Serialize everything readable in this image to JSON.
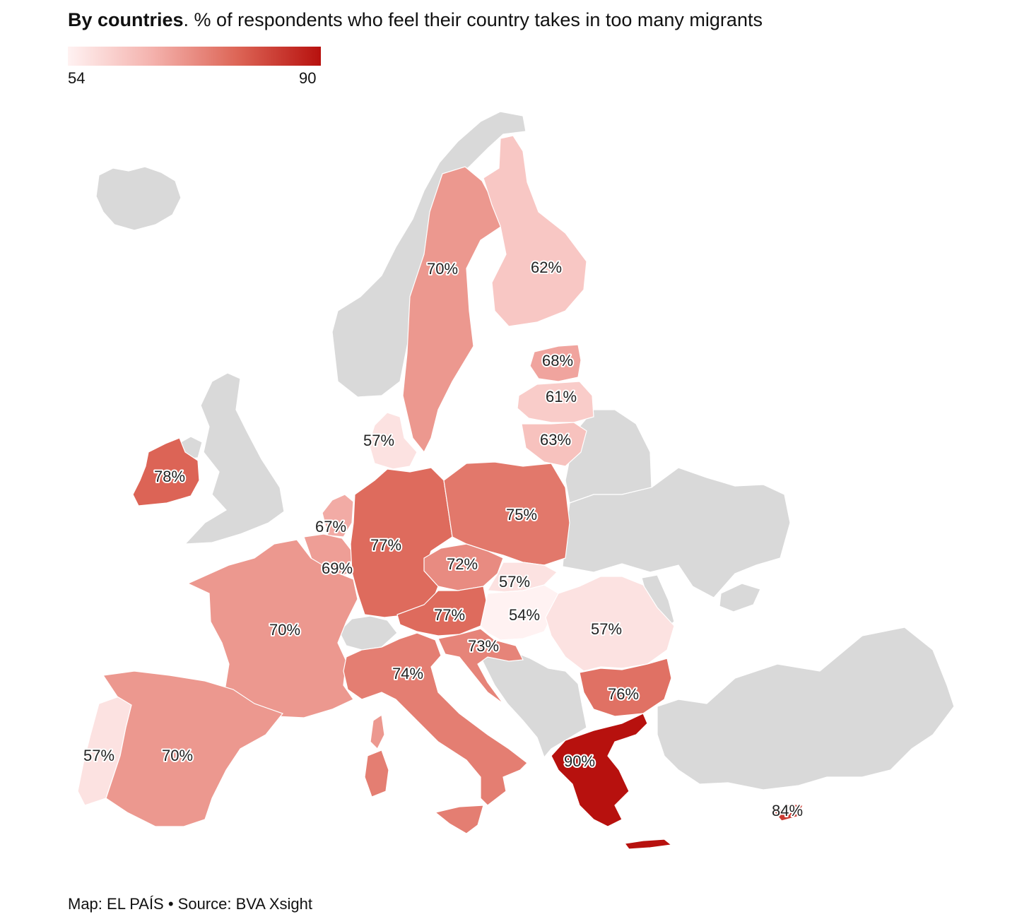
{
  "title": {
    "bold": "By countries",
    "rest": ". % of respondents who feel their country takes in too many migrants"
  },
  "legend": {
    "min": "54",
    "max": "90",
    "min_value": 54,
    "max_value": 90,
    "color_low": "#fff2f2",
    "color_high": "#b7110e"
  },
  "source": "Map: EL PAÍS • Source: BVA Xsight",
  "no_data_color": "#d9d9d9",
  "countries": [
    {
      "name": "Sweden",
      "value": 70,
      "label": "70%"
    },
    {
      "name": "Finland",
      "value": 62,
      "label": "62%"
    },
    {
      "name": "Estonia",
      "value": 68,
      "label": "68%"
    },
    {
      "name": "Latvia",
      "value": 61,
      "label": "61%"
    },
    {
      "name": "Lithuania",
      "value": 63,
      "label": "63%"
    },
    {
      "name": "Denmark",
      "value": 57,
      "label": "57%"
    },
    {
      "name": "Ireland",
      "value": 78,
      "label": "78%"
    },
    {
      "name": "Netherlands",
      "value": 67,
      "label": "67%"
    },
    {
      "name": "Belgium",
      "value": 69,
      "label": "69%"
    },
    {
      "name": "Germany",
      "value": 77,
      "label": "77%"
    },
    {
      "name": "Poland",
      "value": 75,
      "label": "75%"
    },
    {
      "name": "Czechia",
      "value": 72,
      "label": "72%"
    },
    {
      "name": "Slovakia",
      "value": 57,
      "label": "57%"
    },
    {
      "name": "Austria",
      "value": 77,
      "label": "77%"
    },
    {
      "name": "Hungary",
      "value": 54,
      "label": "54%"
    },
    {
      "name": "Romania",
      "value": 57,
      "label": "57%"
    },
    {
      "name": "France",
      "value": 70,
      "label": "70%"
    },
    {
      "name": "Croatia",
      "value": 73,
      "label": "73%"
    },
    {
      "name": "Italy",
      "value": 74,
      "label": "74%"
    },
    {
      "name": "Bulgaria",
      "value": 76,
      "label": "76%"
    },
    {
      "name": "Portugal",
      "value": 57,
      "label": "57%"
    },
    {
      "name": "Spain",
      "value": 70,
      "label": "70%"
    },
    {
      "name": "Greece",
      "value": 90,
      "label": "90%"
    },
    {
      "name": "Cyprus",
      "value": 84,
      "label": "84%"
    }
  ]
}
